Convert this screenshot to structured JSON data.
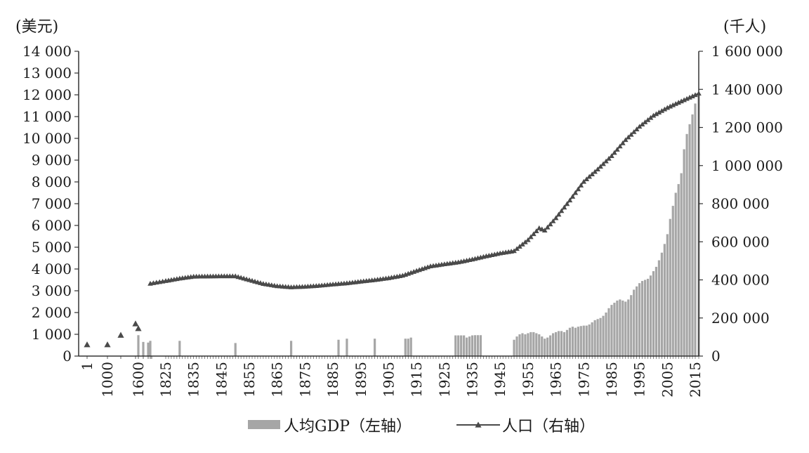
{
  "chart_data": {
    "type": "bar+line",
    "title": "",
    "y_left_unit": "(美元)",
    "y_right_unit": "(千人)",
    "y_left_ticks": [
      "14 000",
      "13 000",
      "12 000",
      "11 000",
      "10 000",
      "9 000",
      "8 000",
      "7 000",
      "6 000",
      "5 000",
      "4 000",
      "3 000",
      "2 000",
      "1 000",
      "0"
    ],
    "y_left_tick_values": [
      14000,
      13000,
      12000,
      11000,
      10000,
      9000,
      8000,
      7000,
      6000,
      5000,
      4000,
      3000,
      2000,
      1000,
      0
    ],
    "y_right_ticks": [
      "1 600 000",
      "1 400 000",
      "1 200 000",
      "1 000 000",
      "800 000",
      "600 000",
      "400 000",
      "200 000",
      "0"
    ],
    "y_right_tick_values": [
      1600000,
      1400000,
      1200000,
      1000000,
      800000,
      600000,
      400000,
      200000,
      0
    ],
    "ylim_left": [
      0,
      14000
    ],
    "ylim_right": [
      0,
      1600000
    ],
    "x_tick_labels": [
      {
        "label": "1",
        "year": 1
      },
      {
        "label": "1000",
        "year": 1000
      },
      {
        "label": "1600",
        "year": 1600
      },
      {
        "label": "1825",
        "year": 1825
      },
      {
        "label": "1835",
        "year": 1835
      },
      {
        "label": "1845",
        "year": 1845
      },
      {
        "label": "1855",
        "year": 1855
      },
      {
        "label": "1865",
        "year": 1865
      },
      {
        "label": "1875",
        "year": 1875
      },
      {
        "label": "1885",
        "year": 1885
      },
      {
        "label": "1895",
        "year": 1895
      },
      {
        "label": "1905",
        "year": 1905
      },
      {
        "label": "1915",
        "year": 1915
      },
      {
        "label": "1925",
        "year": 1925
      },
      {
        "label": "1935",
        "year": 1935
      },
      {
        "label": "1945",
        "year": 1945
      },
      {
        "label": "1955",
        "year": 1955
      },
      {
        "label": "1965",
        "year": 1965
      },
      {
        "label": "1975",
        "year": 1975
      },
      {
        "label": "1985",
        "year": 1985
      },
      {
        "label": "1995",
        "year": 1995
      },
      {
        "label": "2005",
        "year": 2005
      },
      {
        "label": "2015",
        "year": 2015
      }
    ],
    "series": [
      {
        "name": "人均GDP (左轴)",
        "kind": "bar",
        "axis": "left",
        "color": "#a6a6a6",
        "points": [
          {
            "year": 1600,
            "value": 960
          },
          {
            "year": 1700,
            "value": 650
          },
          {
            "year": 1750,
            "value": 620
          },
          {
            "year": 1820,
            "value": 700
          },
          {
            "year": 1830,
            "value": 700
          },
          {
            "year": 1850,
            "value": 600
          },
          {
            "year": 1870,
            "value": 700
          },
          {
            "year": 1887,
            "value": 750
          },
          {
            "year": 1890,
            "value": 800
          },
          {
            "year": 1900,
            "value": 800
          },
          {
            "year": 1911,
            "value": 800
          },
          {
            "year": 1912,
            "value": 800
          },
          {
            "year": 1913,
            "value": 850
          },
          {
            "year": 1929,
            "value": 950
          },
          {
            "year": 1930,
            "value": 950
          },
          {
            "year": 1931,
            "value": 950
          },
          {
            "year": 1932,
            "value": 950
          },
          {
            "year": 1933,
            "value": 850
          },
          {
            "year": 1934,
            "value": 900
          },
          {
            "year": 1935,
            "value": 950
          },
          {
            "year": 1936,
            "value": 960
          },
          {
            "year": 1937,
            "value": 960
          },
          {
            "year": 1938,
            "value": 960
          },
          {
            "year": 1950,
            "value": 750
          },
          {
            "year": 1951,
            "value": 900
          },
          {
            "year": 1952,
            "value": 1000
          },
          {
            "year": 1953,
            "value": 1050
          },
          {
            "year": 1954,
            "value": 1000
          },
          {
            "year": 1955,
            "value": 1050
          },
          {
            "year": 1956,
            "value": 1100
          },
          {
            "year": 1957,
            "value": 1100
          },
          {
            "year": 1958,
            "value": 1050
          },
          {
            "year": 1959,
            "value": 1000
          },
          {
            "year": 1960,
            "value": 900
          },
          {
            "year": 1961,
            "value": 800
          },
          {
            "year": 1962,
            "value": 850
          },
          {
            "year": 1963,
            "value": 950
          },
          {
            "year": 1964,
            "value": 1050
          },
          {
            "year": 1965,
            "value": 1100
          },
          {
            "year": 1966,
            "value": 1150
          },
          {
            "year": 1967,
            "value": 1150
          },
          {
            "year": 1968,
            "value": 1100
          },
          {
            "year": 1969,
            "value": 1200
          },
          {
            "year": 1970,
            "value": 1300
          },
          {
            "year": 1971,
            "value": 1350
          },
          {
            "year": 1972,
            "value": 1300
          },
          {
            "year": 1973,
            "value": 1350
          },
          {
            "year": 1974,
            "value": 1380
          },
          {
            "year": 1975,
            "value": 1400
          },
          {
            "year": 1976,
            "value": 1400
          },
          {
            "year": 1977,
            "value": 1450
          },
          {
            "year": 1978,
            "value": 1550
          },
          {
            "year": 1979,
            "value": 1650
          },
          {
            "year": 1980,
            "value": 1700
          },
          {
            "year": 1981,
            "value": 1750
          },
          {
            "year": 1982,
            "value": 1850
          },
          {
            "year": 1983,
            "value": 2000
          },
          {
            "year": 1984,
            "value": 2200
          },
          {
            "year": 1985,
            "value": 2350
          },
          {
            "year": 1986,
            "value": 2450
          },
          {
            "year": 1987,
            "value": 2550
          },
          {
            "year": 1988,
            "value": 2600
          },
          {
            "year": 1989,
            "value": 2550
          },
          {
            "year": 1990,
            "value": 2500
          },
          {
            "year": 1991,
            "value": 2600
          },
          {
            "year": 1992,
            "value": 2800
          },
          {
            "year": 1993,
            "value": 3050
          },
          {
            "year": 1994,
            "value": 3200
          },
          {
            "year": 1995,
            "value": 3350
          },
          {
            "year": 1996,
            "value": 3450
          },
          {
            "year": 1997,
            "value": 3500
          },
          {
            "year": 1998,
            "value": 3550
          },
          {
            "year": 1999,
            "value": 3700
          },
          {
            "year": 2000,
            "value": 3900
          },
          {
            "year": 2001,
            "value": 4100
          },
          {
            "year": 2002,
            "value": 4400
          },
          {
            "year": 2003,
            "value": 4750
          },
          {
            "year": 2004,
            "value": 5150
          },
          {
            "year": 2005,
            "value": 5600
          },
          {
            "year": 2006,
            "value": 6300
          },
          {
            "year": 2007,
            "value": 6900
          },
          {
            "year": 2008,
            "value": 7500
          },
          {
            "year": 2009,
            "value": 7900
          },
          {
            "year": 2010,
            "value": 8400
          },
          {
            "year": 2011,
            "value": 9500
          },
          {
            "year": 2012,
            "value": 10200
          },
          {
            "year": 2013,
            "value": 10650
          },
          {
            "year": 2014,
            "value": 11100
          },
          {
            "year": 2015,
            "value": 11600
          },
          {
            "year": 2016,
            "value": 12000
          }
        ]
      },
      {
        "name": "人口 (右轴)",
        "kind": "line",
        "axis": "right",
        "marker": "triangle",
        "color": "#4a4a4a",
        "isolated_points": [
          {
            "year": 1,
            "value": 60000
          },
          {
            "year": 1000,
            "value": 60000
          },
          {
            "year": 1300,
            "value": 110000
          },
          {
            "year": 1500,
            "value": 170000
          },
          {
            "year": 1600,
            "value": 145000
          }
        ],
        "points": [
          {
            "year": 1820,
            "value": 381000
          },
          {
            "year": 1825,
            "value": 395000
          },
          {
            "year": 1830,
            "value": 408000
          },
          {
            "year": 1835,
            "value": 418000
          },
          {
            "year": 1840,
            "value": 419000
          },
          {
            "year": 1845,
            "value": 420000
          },
          {
            "year": 1850,
            "value": 420000
          },
          {
            "year": 1855,
            "value": 400000
          },
          {
            "year": 1860,
            "value": 380000
          },
          {
            "year": 1865,
            "value": 368000
          },
          {
            "year": 1870,
            "value": 362000
          },
          {
            "year": 1875,
            "value": 365000
          },
          {
            "year": 1880,
            "value": 370000
          },
          {
            "year": 1885,
            "value": 377000
          },
          {
            "year": 1890,
            "value": 383000
          },
          {
            "year": 1895,
            "value": 392000
          },
          {
            "year": 1900,
            "value": 400000
          },
          {
            "year": 1905,
            "value": 410000
          },
          {
            "year": 1910,
            "value": 423000
          },
          {
            "year": 1915,
            "value": 448000
          },
          {
            "year": 1920,
            "value": 472000
          },
          {
            "year": 1925,
            "value": 483000
          },
          {
            "year": 1930,
            "value": 493000
          },
          {
            "year": 1935,
            "value": 508000
          },
          {
            "year": 1940,
            "value": 525000
          },
          {
            "year": 1945,
            "value": 540000
          },
          {
            "year": 1950,
            "value": 552000
          },
          {
            "year": 1955,
            "value": 610000
          },
          {
            "year": 1959,
            "value": 672000
          },
          {
            "year": 1961,
            "value": 660000
          },
          {
            "year": 1965,
            "value": 725000
          },
          {
            "year": 1970,
            "value": 818000
          },
          {
            "year": 1975,
            "value": 916000
          },
          {
            "year": 1980,
            "value": 981000
          },
          {
            "year": 1985,
            "value": 1051000
          },
          {
            "year": 1990,
            "value": 1135000
          },
          {
            "year": 1995,
            "value": 1205000
          },
          {
            "year": 2000,
            "value": 1263000
          },
          {
            "year": 2005,
            "value": 1304000
          },
          {
            "year": 2010,
            "value": 1338000
          },
          {
            "year": 2015,
            "value": 1371000
          },
          {
            "year": 2016,
            "value": 1379000
          }
        ]
      }
    ],
    "legend": {
      "placement": "bottom-center",
      "items": [
        {
          "label": "人均GDP（左轴）",
          "kind": "bar"
        },
        {
          "label": "人口（右轴）",
          "kind": "line"
        }
      ]
    },
    "grid": false
  }
}
